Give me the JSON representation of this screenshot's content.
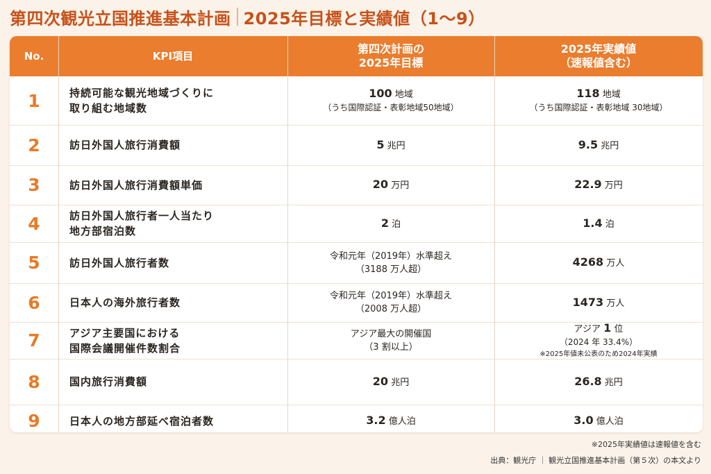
{
  "title": {
    "main": "第四次観光立国推進基本計画",
    "sub": "2025年目標と実績値（1〜9）"
  },
  "header": {
    "no": "No.",
    "kpi": "KPI項目",
    "target_line1": "第四次計画の",
    "target_line2": "2025年目標",
    "actual_line1": "2025年実績値",
    "actual_line2": "（速報値含む）"
  },
  "rows": [
    {
      "no": "1",
      "kpi": [
        "持続可能な観光地域づくりに",
        "取り組む地域数"
      ],
      "target": {
        "num": "100",
        "unit": " 地域",
        "sub": "（うち国際認証・表彰地域50地域）"
      },
      "actual": {
        "num": "118",
        "unit": " 地域",
        "sub": "（うち国際認証・表彰地域 30地域）"
      }
    },
    {
      "no": "2",
      "kpi": [
        "訪日外国人旅行消費額"
      ],
      "target": {
        "num": "5",
        "unit": " 兆円"
      },
      "actual": {
        "num": "9.5",
        "unit": " 兆円"
      }
    },
    {
      "no": "3",
      "kpi": [
        "訪日外国人旅行消費額単価"
      ],
      "target": {
        "num": "20",
        "unit": " 万円"
      },
      "actual": {
        "num": "22.9",
        "unit": " 万円"
      }
    },
    {
      "no": "4",
      "kpi": [
        "訪日外国人旅行者一人当たり",
        "地方部宿泊数"
      ],
      "target": {
        "num": "2",
        "unit": " 泊"
      },
      "actual": {
        "num": "1.4",
        "unit": " 泊"
      }
    },
    {
      "no": "5",
      "kpi": [
        "訪日外国人旅行者数"
      ],
      "target": {
        "line1": "令和元年（2019年）水準超え",
        "line2": "（3188 万人超）"
      },
      "actual": {
        "num": "4268",
        "unit": " 万人"
      }
    },
    {
      "no": "6",
      "kpi": [
        "日本人の海外旅行者数"
      ],
      "target": {
        "line1": "令和元年（2019年）水準超え",
        "line2": "（2008 万人超）"
      },
      "actual": {
        "num": "1473",
        "unit": " 万人"
      }
    },
    {
      "no": "7",
      "kpi": [
        "アジア主要国における",
        "国際会議開催件数割合"
      ],
      "target": {
        "line1": "アジア最大の開催国",
        "line2": "（3 割以上）"
      },
      "actual": {
        "pre": "アジア ",
        "num": "1",
        "unit": " 位",
        "sub": "（2024 年 33.4%）",
        "note": "※2025年値未公表のため2024年実績"
      }
    },
    {
      "no": "8",
      "kpi": [
        "国内旅行消費額"
      ],
      "target": {
        "num": "20",
        "unit": " 兆円"
      },
      "actual": {
        "num": "26.8",
        "unit": " 兆円"
      }
    },
    {
      "no": "9",
      "kpi": [
        "日本人の地方部延べ宿泊者数"
      ],
      "target": {
        "num": "3.2",
        "unit": " 億人泊"
      },
      "actual": {
        "num": "3.0",
        "unit": " 億人泊"
      }
    }
  ],
  "footnotes": {
    "note": "※2025年実績値は速報値を含む",
    "source": "出典：観光庁 ｜ 観光立国推進基本計画（第５次）の本文より"
  },
  "colors": {
    "accent": "#ea7d2e",
    "title": "#c7511a",
    "number": "#e87a26",
    "background": "#fbf3e9"
  }
}
